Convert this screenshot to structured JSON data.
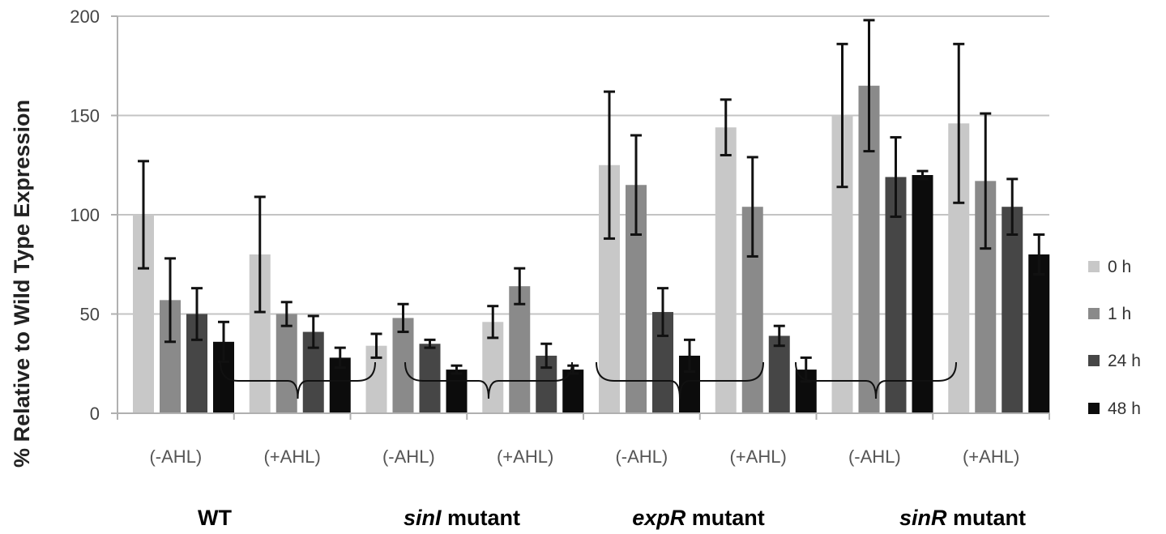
{
  "chart_data": {
    "type": "bar",
    "ylabel": "% Relative to Wild Type Expression",
    "ylim": [
      0,
      200
    ],
    "yticks": [
      0,
      50,
      100,
      150,
      200
    ],
    "grid": true,
    "legend_position": "right",
    "categories": [
      "(-AHL)",
      "(+AHL)",
      "(-AHL)",
      "(+AHL)",
      "(-AHL)",
      "(+AHL)",
      "(-AHL)",
      "(+AHL)"
    ],
    "groups": [
      {
        "prefix": "",
        "italic": "",
        "suffix": "WT"
      },
      {
        "prefix": "",
        "italic": "sinI",
        "suffix": " mutant"
      },
      {
        "prefix": "",
        "italic": "expR",
        "suffix": " mutant"
      },
      {
        "prefix": "",
        "italic": "sinR",
        "suffix": " mutant"
      }
    ],
    "series": [
      {
        "name": "0 h",
        "color": "#c8c8c8",
        "values": [
          100,
          80,
          34,
          46,
          125,
          144,
          150,
          146
        ],
        "errors": [
          27,
          29,
          6,
          8,
          37,
          14,
          36,
          40
        ]
      },
      {
        "name": "1 h",
        "color": "#8a8a8a",
        "values": [
          57,
          50,
          48,
          64,
          115,
          104,
          165,
          117
        ],
        "errors": [
          21,
          6,
          7,
          9,
          25,
          25,
          33,
          34
        ]
      },
      {
        "name": "24 h",
        "color": "#464646",
        "values": [
          50,
          41,
          35,
          29,
          51,
          39,
          119,
          104
        ],
        "errors": [
          13,
          8,
          2,
          6,
          12,
          5,
          20,
          14
        ]
      },
      {
        "name": "48 h",
        "color": "#0c0c0c",
        "values": [
          36,
          28,
          22,
          22,
          29,
          22,
          120,
          80
        ],
        "errors": [
          10,
          5,
          2,
          2,
          8,
          6,
          2,
          10
        ]
      }
    ]
  }
}
